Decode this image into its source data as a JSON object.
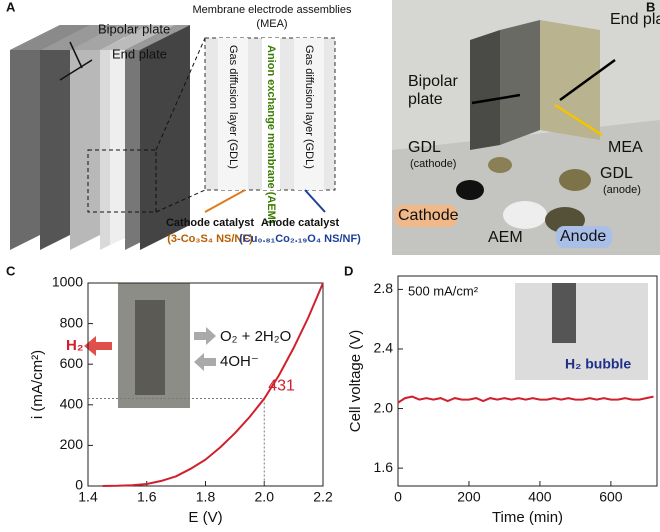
{
  "panels": {
    "a": {
      "label": "A",
      "bipolar_plate": "Bipolar plate",
      "end_plate": "End plate",
      "mea_title": "Membrane electrode assemblies",
      "mea_abbr": "(MEA)",
      "gdl_left": "Gas diffusion layer (GDL)",
      "aem": "Anion exchange membrane (AEM)",
      "gdl_right": "Gas diffusion layer (GDL)",
      "cathode_catalyst": "Cathode catalyst",
      "cathode_material": "(3-Co₃S₄ NS/NF)",
      "anode_catalyst": "Anode catalyst",
      "anode_material": "(Cu₀.₈₁Co₂.₁₉O₄ NS/NF)"
    },
    "b": {
      "label": "B",
      "end_plate": "End plate",
      "bipolar_1": "Bipolar",
      "bipolar_2": "plate",
      "mea": "MEA",
      "gdl_cathode": "GDL",
      "gdl_cathode_sub": "(cathode)",
      "gdl_anode": "GDL",
      "gdl_anode_sub": "(anode)",
      "cathode": "Cathode",
      "aem": "AEM",
      "anode": "Anode"
    },
    "c": {
      "label": "C",
      "h2": "H₂",
      "o2": "O₂ + 2H₂O",
      "oh": "4OH⁻"
    },
    "d": {
      "label": "D",
      "inset": "H₂ bubble"
    }
  },
  "chart_data": [
    {
      "type": "line",
      "xlabel": "E (V)",
      "ylabel": "i  (mA/cm²)",
      "xlim": [
        1.4,
        2.2
      ],
      "ylim": [
        0,
        1000
      ],
      "xticks": [
        1.4,
        1.6,
        1.8,
        {
          "value": 2,
          "label": "2.0"
        },
        2.2
      ],
      "yticks": [
        0,
        200,
        400,
        600,
        800,
        1000
      ],
      "x": [
        1.45,
        1.5,
        1.55,
        1.6,
        1.65,
        1.7,
        1.75,
        1.8,
        1.85,
        1.9,
        1.95,
        2.0,
        2.05,
        2.1,
        2.15,
        2.2
      ],
      "series": [
        {
          "color": "#d0202e",
          "values": [
            0,
            1,
            4,
            10,
            25,
            48,
            85,
            130,
            190,
            260,
            340,
            431,
            545,
            680,
            830,
            1000
          ]
        }
      ],
      "annotation": {
        "x": 2,
        "y": 431,
        "label": "431"
      }
    },
    {
      "type": "line",
      "xlabel": "Time (min)",
      "ylabel": "Cell voltage (V)",
      "annotation_text": "500 mA/cm²",
      "xlim": [
        0,
        730
      ],
      "ylim": [
        1.48,
        2.89
      ],
      "xticks": [
        0,
        200,
        400,
        600
      ],
      "yticks": [
        1.6,
        {
          "value": 2,
          "label": "2.0"
        },
        2.4,
        2.8
      ],
      "x": [
        0,
        20,
        40,
        60,
        80,
        100,
        120,
        140,
        160,
        180,
        200,
        220,
        240,
        260,
        280,
        300,
        320,
        340,
        360,
        380,
        400,
        420,
        440,
        460,
        480,
        500,
        520,
        540,
        560,
        580,
        600,
        620,
        640,
        660,
        680,
        700,
        720
      ],
      "series": [
        {
          "color": "#d0202e",
          "values": [
            2.04,
            2.07,
            2.08,
            2.06,
            2.07,
            2.06,
            2.07,
            2.05,
            2.07,
            2.06,
            2.06,
            2.07,
            2.05,
            2.07,
            2.06,
            2.07,
            2.06,
            2.07,
            2.06,
            2.07,
            2.06,
            2.06,
            2.07,
            2.06,
            2.07,
            2.06,
            2.06,
            2.07,
            2.06,
            2.07,
            2.06,
            2.06,
            2.07,
            2.06,
            2.06,
            2.07,
            2.08
          ]
        }
      ]
    }
  ]
}
